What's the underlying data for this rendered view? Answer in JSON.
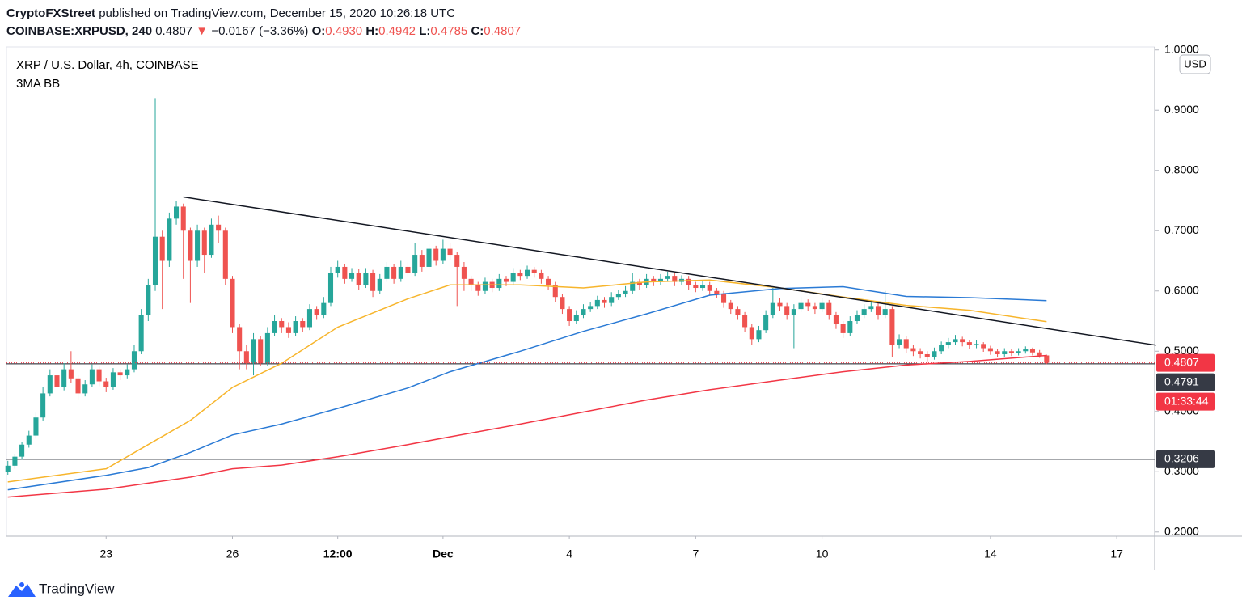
{
  "header": {
    "publisher": "CryptoFXStreet",
    "published_text": "published on TradingView.com, December 15, 2020 10:26:18 UTC"
  },
  "symbol_line": {
    "symbol": "COINBASE:XRPUSD, 240",
    "last": "0.4807",
    "arrow": "▼",
    "change": "−0.0167 (−3.36%)",
    "ohlc": [
      {
        "key": "O:",
        "value": "0.4930"
      },
      {
        "key": "H:",
        "value": "0.4942"
      },
      {
        "key": "L:",
        "value": "0.4785"
      },
      {
        "key": "C:",
        "value": "0.4807"
      }
    ]
  },
  "chart_data": {
    "type": "candlestick",
    "title": "XRP / U.S. Dollar, 4h, COINBASE",
    "subtitle": "3MA BB",
    "currency": "USD",
    "up_color": "#26a69a",
    "down_color": "#ef5350",
    "xlim": [
      -0.2,
      163.4
    ],
    "xticks": [
      {
        "value": 14,
        "label": "23"
      },
      {
        "value": 32,
        "label": "26"
      },
      {
        "value": 47,
        "label": "12:00"
      },
      {
        "value": 62,
        "label": "Dec"
      },
      {
        "value": 80,
        "label": "4"
      },
      {
        "value": 98,
        "label": "7"
      },
      {
        "value": 116,
        "label": "10"
      },
      {
        "value": 140,
        "label": "14"
      },
      {
        "value": 158,
        "label": "17"
      }
    ],
    "ylim": [
      0.193,
      1.005
    ],
    "yticks": [
      {
        "value": 0.2,
        "label": "0.2000"
      },
      {
        "value": 0.3,
        "label": "0.3000"
      },
      {
        "value": 0.4,
        "label": "0.4000"
      },
      {
        "value": 0.5,
        "label": "0.5000"
      },
      {
        "value": 0.6,
        "label": "0.6000"
      },
      {
        "value": 0.7,
        "label": "0.7000"
      },
      {
        "value": 0.8,
        "label": "0.8000"
      },
      {
        "value": 0.9,
        "label": "0.9000"
      },
      {
        "value": 1.0,
        "label": "1.0000"
      }
    ],
    "grid": false,
    "open": [
      0.3,
      0.31,
      0.325,
      0.345,
      0.36,
      0.39,
      0.43,
      0.46,
      0.44,
      0.47,
      0.455,
      0.43,
      0.445,
      0.47,
      0.45,
      0.44,
      0.465,
      0.46,
      0.47,
      0.5,
      0.56,
      0.61,
      0.69,
      0.65,
      0.72,
      0.74,
      0.7,
      0.65,
      0.7,
      0.66,
      0.71,
      0.7,
      0.62,
      0.54,
      0.5,
      0.48,
      0.52,
      0.48,
      0.53,
      0.55,
      0.54,
      0.53,
      0.55,
      0.54,
      0.57,
      0.56,
      0.58,
      0.63,
      0.64,
      0.62,
      0.63,
      0.61,
      0.63,
      0.6,
      0.62,
      0.64,
      0.62,
      0.64,
      0.63,
      0.66,
      0.64,
      0.67,
      0.65,
      0.67,
      0.66,
      0.64,
      0.62,
      0.61,
      0.6,
      0.615,
      0.605,
      0.62,
      0.615,
      0.63,
      0.625,
      0.635,
      0.63,
      0.62,
      0.61,
      0.59,
      0.57,
      0.55,
      0.56,
      0.57,
      0.575,
      0.585,
      0.58,
      0.59,
      0.595,
      0.6,
      0.615,
      0.61,
      0.62,
      0.615,
      0.62,
      0.625,
      0.615,
      0.62,
      0.61,
      0.605,
      0.61,
      0.6,
      0.595,
      0.58,
      0.57,
      0.56,
      0.54,
      0.52,
      0.535,
      0.56,
      0.58,
      0.575,
      0.56,
      0.57,
      0.58,
      0.575,
      0.57,
      0.58,
      0.56,
      0.545,
      0.53,
      0.55,
      0.56,
      0.57,
      0.575,
      0.56,
      0.57,
      0.51,
      0.52,
      0.505,
      0.5,
      0.495,
      0.49,
      0.5,
      0.51,
      0.515,
      0.52,
      0.515,
      0.51,
      0.512,
      0.505,
      0.5,
      0.495,
      0.5,
      0.497,
      0.5,
      0.503,
      0.498,
      0.493
    ],
    "high": [
      0.318,
      0.33,
      0.35,
      0.368,
      0.398,
      0.44,
      0.47,
      0.468,
      0.48,
      0.5,
      0.46,
      0.452,
      0.478,
      0.475,
      0.456,
      0.472,
      0.47,
      0.478,
      0.51,
      0.57,
      0.62,
      0.92,
      0.7,
      0.73,
      0.75,
      0.745,
      0.705,
      0.71,
      0.705,
      0.72,
      0.725,
      0.705,
      0.625,
      0.545,
      0.51,
      0.53,
      0.525,
      0.54,
      0.56,
      0.555,
      0.548,
      0.558,
      0.555,
      0.578,
      0.575,
      0.59,
      0.64,
      0.65,
      0.645,
      0.638,
      0.636,
      0.638,
      0.635,
      0.628,
      0.648,
      0.645,
      0.65,
      0.648,
      0.68,
      0.668,
      0.678,
      0.675,
      0.685,
      0.68,
      0.665,
      0.648,
      0.625,
      0.615,
      0.622,
      0.62,
      0.628,
      0.625,
      0.638,
      0.635,
      0.642,
      0.64,
      0.635,
      0.625,
      0.615,
      0.595,
      0.575,
      0.568,
      0.578,
      0.582,
      0.592,
      0.59,
      0.598,
      0.602,
      0.608,
      0.63,
      0.62,
      0.628,
      0.625,
      0.628,
      0.632,
      0.63,
      0.626,
      0.625,
      0.615,
      0.616,
      0.615,
      0.605,
      0.6,
      0.585,
      0.575,
      0.565,
      0.545,
      0.542,
      0.568,
      0.605,
      0.588,
      0.58,
      0.578,
      0.59,
      0.586,
      0.58,
      0.588,
      0.585,
      0.565,
      0.55,
      0.558,
      0.568,
      0.578,
      0.582,
      0.58,
      0.6,
      0.575,
      0.528,
      0.525,
      0.51,
      0.505,
      0.5,
      0.506,
      0.516,
      0.522,
      0.527,
      0.524,
      0.519,
      0.518,
      0.515,
      0.509,
      0.504,
      0.505,
      0.504,
      0.505,
      0.508,
      0.506,
      0.502,
      0.4942
    ],
    "low": [
      0.295,
      0.305,
      0.32,
      0.34,
      0.355,
      0.385,
      0.425,
      0.432,
      0.435,
      0.448,
      0.42,
      0.425,
      0.44,
      0.442,
      0.432,
      0.436,
      0.452,
      0.455,
      0.465,
      0.495,
      0.55,
      0.6,
      0.57,
      0.64,
      0.71,
      0.62,
      0.58,
      0.64,
      0.63,
      0.655,
      0.68,
      0.61,
      0.53,
      0.47,
      0.47,
      0.46,
      0.475,
      0.475,
      0.525,
      0.53,
      0.522,
      0.525,
      0.532,
      0.535,
      0.552,
      0.555,
      0.575,
      0.622,
      0.612,
      0.615,
      0.602,
      0.605,
      0.59,
      0.595,
      0.615,
      0.612,
      0.615,
      0.622,
      0.625,
      0.632,
      0.635,
      0.642,
      0.645,
      0.652,
      0.575,
      0.6,
      0.6,
      0.592,
      0.595,
      0.598,
      0.6,
      0.608,
      0.61,
      0.618,
      0.62,
      0.622,
      0.612,
      0.602,
      0.582,
      0.562,
      0.542,
      0.545,
      0.555,
      0.565,
      0.57,
      0.572,
      0.575,
      0.585,
      0.59,
      0.595,
      0.602,
      0.605,
      0.608,
      0.61,
      0.615,
      0.608,
      0.61,
      0.602,
      0.598,
      0.6,
      0.592,
      0.588,
      0.572,
      0.562,
      0.552,
      0.532,
      0.51,
      0.515,
      0.53,
      0.555,
      0.567,
      0.552,
      0.505,
      0.565,
      0.567,
      0.562,
      0.565,
      0.552,
      0.537,
      0.522,
      0.525,
      0.545,
      0.555,
      0.565,
      0.552,
      0.555,
      0.49,
      0.505,
      0.497,
      0.492,
      0.488,
      0.483,
      0.486,
      0.495,
      0.505,
      0.51,
      0.508,
      0.504,
      0.505,
      0.499,
      0.494,
      0.49,
      0.491,
      0.492,
      0.493,
      0.496,
      0.493,
      0.489,
      0.4785
    ],
    "close": [
      0.31,
      0.325,
      0.345,
      0.36,
      0.39,
      0.43,
      0.46,
      0.44,
      0.47,
      0.455,
      0.43,
      0.445,
      0.47,
      0.45,
      0.44,
      0.465,
      0.46,
      0.47,
      0.5,
      0.56,
      0.61,
      0.69,
      0.65,
      0.72,
      0.74,
      0.7,
      0.65,
      0.7,
      0.66,
      0.71,
      0.7,
      0.62,
      0.54,
      0.5,
      0.48,
      0.52,
      0.48,
      0.53,
      0.55,
      0.54,
      0.53,
      0.55,
      0.54,
      0.57,
      0.56,
      0.58,
      0.63,
      0.64,
      0.62,
      0.63,
      0.61,
      0.63,
      0.6,
      0.62,
      0.64,
      0.62,
      0.64,
      0.63,
      0.66,
      0.64,
      0.67,
      0.65,
      0.67,
      0.66,
      0.64,
      0.62,
      0.61,
      0.6,
      0.615,
      0.605,
      0.62,
      0.615,
      0.63,
      0.625,
      0.635,
      0.63,
      0.62,
      0.61,
      0.59,
      0.57,
      0.55,
      0.56,
      0.57,
      0.575,
      0.585,
      0.58,
      0.59,
      0.595,
      0.6,
      0.615,
      0.61,
      0.62,
      0.615,
      0.62,
      0.625,
      0.615,
      0.62,
      0.61,
      0.605,
      0.61,
      0.6,
      0.595,
      0.58,
      0.57,
      0.56,
      0.54,
      0.52,
      0.535,
      0.56,
      0.58,
      0.575,
      0.56,
      0.57,
      0.58,
      0.575,
      0.57,
      0.58,
      0.56,
      0.545,
      0.53,
      0.55,
      0.56,
      0.57,
      0.575,
      0.56,
      0.57,
      0.51,
      0.52,
      0.505,
      0.5,
      0.495,
      0.49,
      0.5,
      0.51,
      0.515,
      0.52,
      0.515,
      0.51,
      0.512,
      0.505,
      0.5,
      0.495,
      0.5,
      0.497,
      0.5,
      0.503,
      0.498,
      0.493,
      0.4807
    ],
    "ma": [
      {
        "color": "#f7b52c",
        "x": [
          0,
          14,
          20,
          26,
          32,
          39,
          47,
          57,
          63,
          73,
          82,
          91,
          100,
          110,
          119,
          128,
          137,
          148
        ],
        "values": [
          0.283,
          0.305,
          0.345,
          0.385,
          0.44,
          0.48,
          0.54,
          0.587,
          0.61,
          0.61,
          0.605,
          0.615,
          0.618,
          0.605,
          0.59,
          0.576,
          0.568,
          0.549
        ]
      },
      {
        "color": "#2a7ad5",
        "x": [
          0,
          14,
          20,
          26,
          32,
          39,
          47,
          57,
          63,
          73,
          82,
          91,
          100,
          110,
          119,
          128,
          137,
          148
        ],
        "values": [
          0.27,
          0.294,
          0.307,
          0.332,
          0.361,
          0.379,
          0.405,
          0.439,
          0.466,
          0.5,
          0.533,
          0.562,
          0.593,
          0.604,
          0.607,
          0.591,
          0.589,
          0.584
        ]
      },
      {
        "color": "#f23645",
        "x": [
          0,
          14,
          20,
          26,
          32,
          39,
          47,
          57,
          63,
          73,
          82,
          91,
          100,
          110,
          119,
          128,
          137,
          148
        ],
        "values": [
          0.258,
          0.271,
          0.281,
          0.291,
          0.305,
          0.311,
          0.325,
          0.345,
          0.358,
          0.379,
          0.399,
          0.419,
          0.436,
          0.452,
          0.466,
          0.477,
          0.483,
          0.493
        ]
      }
    ],
    "trendline": {
      "x": [
        25,
        163.6
      ],
      "y": [
        0.756,
        0.51
      ]
    },
    "price_line": {
      "value": 0.4807,
      "countdown": "01:33:44",
      "color": "#f23645"
    },
    "levels": [
      0.4791,
      0.3206
    ]
  },
  "footer": {
    "brand": "TradingView"
  }
}
